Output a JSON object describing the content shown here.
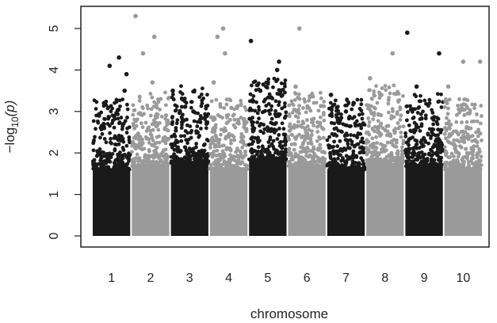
{
  "chart_data": {
    "type": "scatter",
    "title": "",
    "xlabel": "chromosome",
    "ylabel_parts": {
      "prefix": "−log",
      "sub": "10",
      "suffix": "(p)"
    },
    "ylim": [
      0,
      5.3
    ],
    "yticks": [
      0,
      1,
      2,
      3,
      4,
      5
    ],
    "chromosomes": [
      "1",
      "2",
      "3",
      "4",
      "5",
      "6",
      "7",
      "8",
      "9",
      "10"
    ],
    "colors": {
      "odd": "#1a1a1a",
      "even": "#9a9a9a"
    },
    "series": [
      {
        "chromosome": "1",
        "color": "odd",
        "bulk_top": 2.0,
        "max": 4.3,
        "peaks": [
          [
            0.3,
            3.2
          ],
          [
            0.45,
            4.1
          ],
          [
            0.7,
            4.3
          ],
          [
            0.9,
            3.9
          ],
          [
            0.85,
            3.5
          ]
        ]
      },
      {
        "chromosome": "2",
        "color": "even",
        "bulk_top": 2.1,
        "max": 5.3,
        "peaks": [
          [
            0.1,
            5.3
          ],
          [
            0.3,
            4.4
          ],
          [
            0.6,
            4.8
          ],
          [
            0.55,
            3.7
          ]
        ]
      },
      {
        "chromosome": "3",
        "color": "odd",
        "bulk_top": 2.2,
        "max": 3.5,
        "peaks": [
          [
            0.05,
            3.5
          ],
          [
            0.3,
            3.3
          ],
          [
            0.6,
            3.0
          ]
        ]
      },
      {
        "chromosome": "4",
        "color": "even",
        "bulk_top": 2.0,
        "max": 5.0,
        "peaks": [
          [
            0.2,
            4.8
          ],
          [
            0.35,
            5.0
          ],
          [
            0.4,
            4.4
          ],
          [
            0.1,
            3.7
          ]
        ]
      },
      {
        "chromosome": "5",
        "color": "odd",
        "bulk_top": 2.3,
        "max": 4.7,
        "peaks": [
          [
            0.05,
            4.7
          ],
          [
            0.8,
            4.2
          ],
          [
            0.75,
            4.0
          ],
          [
            0.3,
            3.5
          ]
        ]
      },
      {
        "chromosome": "6",
        "color": "even",
        "bulk_top": 2.1,
        "max": 5.0,
        "peaks": [
          [
            0.3,
            5.0
          ],
          [
            0.2,
            3.6
          ]
        ]
      },
      {
        "chromosome": "7",
        "color": "odd",
        "bulk_top": 2.0,
        "max": 3.4,
        "peaks": [
          [
            0.1,
            3.4
          ],
          [
            0.5,
            3.0
          ]
        ]
      },
      {
        "chromosome": "8",
        "color": "even",
        "bulk_top": 2.2,
        "max": 4.4,
        "peaks": [
          [
            0.7,
            4.4
          ],
          [
            0.1,
            3.8
          ],
          [
            0.4,
            3.4
          ]
        ]
      },
      {
        "chromosome": "9",
        "color": "odd",
        "bulk_top": 2.1,
        "max": 4.9,
        "peaks": [
          [
            0.05,
            4.9
          ],
          [
            0.9,
            4.4
          ],
          [
            0.3,
            3.6
          ]
        ]
      },
      {
        "chromosome": "10",
        "color": "even",
        "bulk_top": 2.0,
        "max": 4.2,
        "peaks": [
          [
            0.5,
            4.2
          ],
          [
            0.95,
            4.2
          ],
          [
            0.1,
            3.6
          ]
        ]
      }
    ]
  }
}
